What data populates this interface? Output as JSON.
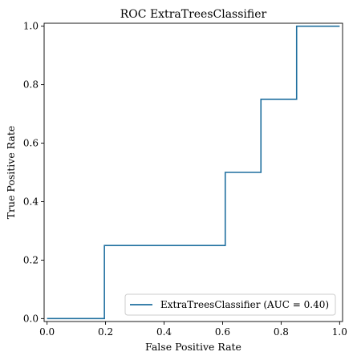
{
  "chart_data": {
    "type": "line",
    "title": "ROC ExtraTreesClassifier",
    "xlabel": "False Positive Rate",
    "ylabel": "True Positive Rate",
    "xlim": [
      -0.01,
      1.01
    ],
    "ylim": [
      -0.01,
      1.01
    ],
    "x_ticks": [
      "0.0",
      "0.2",
      "0.4",
      "0.6",
      "0.8",
      "1.0"
    ],
    "y_ticks": [
      "0.0",
      "0.2",
      "0.4",
      "0.6",
      "0.8",
      "1.0"
    ],
    "grid": false,
    "legend_position": "lower-right",
    "series": [
      {
        "name": "ExtraTreesClassifier (AUC = 0.40)",
        "color": "#1f6f9f",
        "x": [
          0.0,
          0.196,
          0.196,
          0.609,
          0.609,
          0.731,
          0.731,
          0.853,
          0.853,
          1.0
        ],
        "y": [
          0.0,
          0.0,
          0.25,
          0.25,
          0.5,
          0.5,
          0.75,
          0.75,
          1.0,
          1.0
        ]
      }
    ]
  }
}
